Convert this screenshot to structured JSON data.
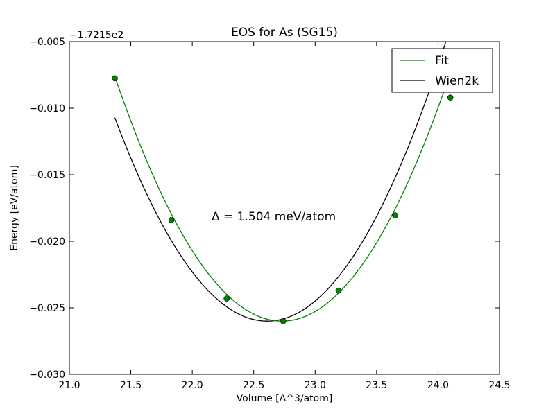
{
  "chart_data": {
    "type": "line",
    "title": "EOS for As (SG15)",
    "xlabel": "Volume [A^3/atom]",
    "ylabel": "Energy [eV/atom]",
    "y_offset_label": "−1.7215e2",
    "xlim": [
      21.0,
      24.5
    ],
    "ylim": [
      -0.03,
      -0.005
    ],
    "x_ticks": [
      21.0,
      21.5,
      22.0,
      22.5,
      23.0,
      23.5,
      24.0,
      24.5
    ],
    "x_tick_labels": [
      "21.0",
      "21.5",
      "22.0",
      "22.5",
      "23.0",
      "23.5",
      "24.0",
      "24.5"
    ],
    "y_ticks": [
      -0.005,
      -0.01,
      -0.015,
      -0.02,
      -0.025,
      -0.03
    ],
    "y_tick_labels": [
      "−0.005",
      "−0.010",
      "−0.015",
      "−0.020",
      "−0.025",
      "−0.030"
    ],
    "grid": false,
    "legend_position": "top-right",
    "annotation": "Δ = 1.504 meV/atom",
    "series": [
      {
        "name": "Fit",
        "color": "#008000",
        "points": [
          {
            "x": 21.37,
            "y": -0.00775
          },
          {
            "x": 21.83,
            "y": -0.0184
          },
          {
            "x": 22.28,
            "y": -0.0243
          },
          {
            "x": 22.74,
            "y": -0.026
          },
          {
            "x": 23.19,
            "y": -0.0237
          },
          {
            "x": 23.65,
            "y": -0.01805
          },
          {
            "x": 24.1,
            "y": -0.0092
          }
        ],
        "curve": {
          "type": "quadratic",
          "vertex_x": 22.73,
          "vertex_y": -0.026,
          "curvature": 0.00994,
          "x_range": [
            21.37,
            24.1
          ]
        }
      },
      {
        "name": "Wien2k",
        "color": "#000000",
        "curve": {
          "type": "quadratic",
          "vertex_x": 22.61,
          "vertex_y": -0.026,
          "curvature": 0.00994,
          "x_range": [
            21.37,
            24.1
          ]
        }
      }
    ]
  }
}
